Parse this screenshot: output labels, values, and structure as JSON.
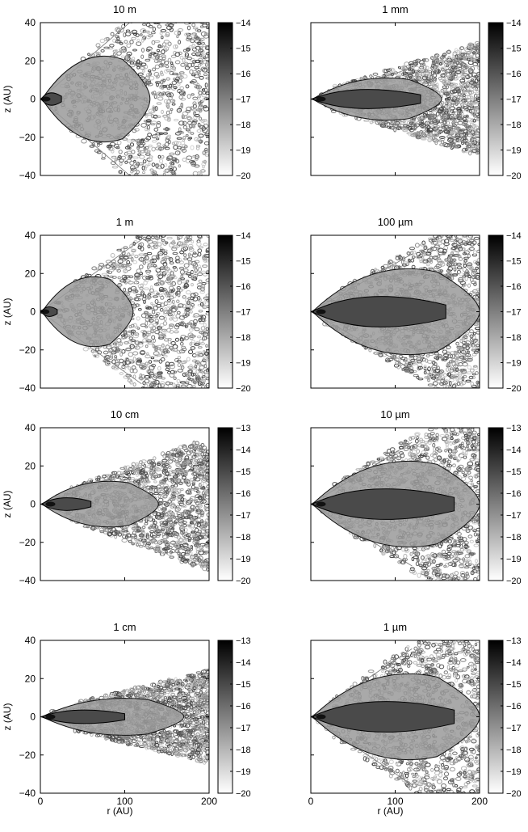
{
  "figure": {
    "shared_axes": {
      "ylabel": "z (AU)",
      "xlabel": "r (AU)",
      "y_ticks": [
        "40",
        "20",
        "0",
        "−20",
        "−40"
      ],
      "x_ticks": [
        "0",
        "100",
        "200"
      ]
    }
  },
  "chart_data": [
    {
      "type": "heatmap",
      "title": "10 m",
      "xlim": [
        0,
        200
      ],
      "ylim": [
        -40,
        40
      ],
      "x_ticks": [
        0,
        100,
        200
      ],
      "y_ticks": [
        40,
        20,
        0,
        -20,
        -40
      ],
      "colorbar": {
        "ticks": [
          "−14",
          "−15",
          "−16",
          "−17",
          "−18",
          "−19",
          "−20"
        ],
        "range": [
          -20,
          -14
        ]
      },
      "structure": {
        "core_extent_r": 25,
        "dense_extent_r": 130,
        "half_opening": 0.42,
        "noise_start_r": 80,
        "colormap": "grayscale, black = high"
      }
    },
    {
      "type": "heatmap",
      "title": "1 mm",
      "xlim": [
        0,
        200
      ],
      "ylim": [
        -40,
        40
      ],
      "x_ticks": [
        0,
        100,
        200
      ],
      "y_ticks": [
        40,
        20,
        0,
        -20,
        -40
      ],
      "colorbar": {
        "ticks": [
          "−14",
          "−15",
          "−16",
          "−17",
          "−18",
          "−19",
          "−20"
        ],
        "range": [
          -20,
          -14
        ]
      },
      "structure": {
        "core_extent_r": 130,
        "dense_extent_r": 155,
        "half_opening": 0.15,
        "noise_start_r": 60,
        "colormap": "grayscale, black = high"
      }
    },
    {
      "type": "heatmap",
      "title": "1 m",
      "xlim": [
        0,
        200
      ],
      "ylim": [
        -40,
        40
      ],
      "x_ticks": [
        0,
        100,
        200
      ],
      "y_ticks": [
        40,
        20,
        0,
        -20,
        -40
      ],
      "colorbar": {
        "ticks": [
          "−14",
          "−15",
          "−16",
          "−17",
          "−18",
          "−19",
          "−20"
        ],
        "range": [
          -20,
          -14
        ]
      },
      "structure": {
        "core_extent_r": 20,
        "dense_extent_r": 110,
        "half_opening": 0.35,
        "noise_start_r": 80,
        "colormap": "grayscale, black = high"
      }
    },
    {
      "type": "heatmap",
      "title": "100 µm",
      "xlim": [
        0,
        200
      ],
      "ylim": [
        -40,
        40
      ],
      "x_ticks": [
        0,
        100,
        200
      ],
      "y_ticks": [
        40,
        20,
        0,
        -20,
        -40
      ],
      "colorbar": {
        "ticks": [
          "−14",
          "−15",
          "−16",
          "−17",
          "−18",
          "−19",
          "−20"
        ],
        "range": [
          -20,
          -14
        ]
      },
      "structure": {
        "core_extent_r": 160,
        "dense_extent_r": 200,
        "half_opening": 0.28,
        "noise_start_r": 40,
        "colormap": "grayscale, black = high"
      }
    },
    {
      "type": "heatmap",
      "title": "10 cm",
      "xlim": [
        0,
        200
      ],
      "ylim": [
        -40,
        40
      ],
      "x_ticks": [
        0,
        100,
        200
      ],
      "y_ticks": [
        40,
        20,
        0,
        -20,
        -40
      ],
      "colorbar": {
        "ticks": [
          "−13",
          "−14",
          "−15",
          "−16",
          "−17",
          "−18",
          "−19",
          "−20"
        ],
        "range": [
          -20,
          -13
        ]
      },
      "structure": {
        "core_extent_r": 60,
        "dense_extent_r": 140,
        "half_opening": 0.18,
        "noise_start_r": 90,
        "colormap": "grayscale, black = high"
      }
    },
    {
      "type": "heatmap",
      "title": "10 µm",
      "xlim": [
        0,
        200
      ],
      "ylim": [
        -40,
        40
      ],
      "x_ticks": [
        0,
        100,
        200
      ],
      "y_ticks": [
        40,
        20,
        0,
        -20,
        -40
      ],
      "colorbar": {
        "ticks": [
          "−13",
          "−14",
          "−15",
          "−16",
          "−17",
          "−18",
          "−19",
          "−20"
        ],
        "range": [
          -20,
          -13
        ]
      },
      "structure": {
        "core_extent_r": 170,
        "dense_extent_r": 200,
        "half_opening": 0.3,
        "noise_start_r": 60,
        "colormap": "grayscale, black = high"
      }
    },
    {
      "type": "heatmap",
      "title": "1 cm",
      "xlim": [
        0,
        200
      ],
      "ylim": [
        -40,
        40
      ],
      "x_ticks": [
        0,
        100,
        200
      ],
      "y_ticks": [
        40,
        20,
        0,
        -20,
        -40
      ],
      "colorbar": {
        "ticks": [
          "−13",
          "−14",
          "−15",
          "−16",
          "−17",
          "−18",
          "−19",
          "−20"
        ],
        "range": [
          -20,
          -13
        ]
      },
      "structure": {
        "core_extent_r": 100,
        "dense_extent_r": 170,
        "half_opening": 0.12,
        "noise_start_r": 100,
        "colormap": "grayscale, black = high"
      }
    },
    {
      "type": "heatmap",
      "title": "1 µm",
      "xlim": [
        0,
        200
      ],
      "ylim": [
        -40,
        40
      ],
      "x_ticks": [
        0,
        100,
        200
      ],
      "y_ticks": [
        40,
        20,
        0,
        -20,
        -40
      ],
      "colorbar": {
        "ticks": [
          "−13",
          "−14",
          "−15",
          "−16",
          "−17",
          "−18",
          "−19",
          "−20"
        ],
        "range": [
          -20,
          -13
        ]
      },
      "structure": {
        "core_extent_r": 170,
        "dense_extent_r": 200,
        "half_opening": 0.33,
        "noise_start_r": 40,
        "colormap": "grayscale, black = high"
      }
    }
  ]
}
